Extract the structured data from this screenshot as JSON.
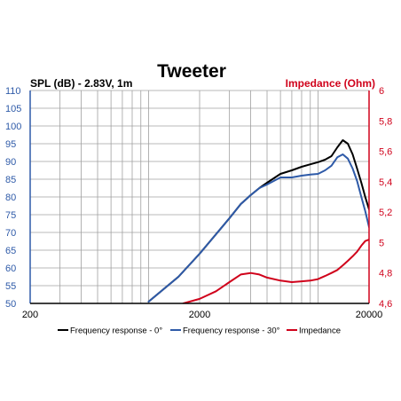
{
  "chart_data": {
    "type": "line",
    "title": "Tweeter",
    "ylabel": "SPL (dB) - 2.83V, 1m",
    "y2label": "Impedance (Ohm)",
    "x_scale": "log",
    "xlim": [
      200,
      20000
    ],
    "ylim": [
      50,
      110
    ],
    "y2lim": [
      4.6,
      6
    ],
    "grid": true,
    "legend_position": "bottom",
    "x_ticks": [
      "200",
      "2000",
      "20000"
    ],
    "y_ticks": [
      "110",
      "105",
      "100",
      "95",
      "90",
      "85",
      "80",
      "75",
      "70",
      "65",
      "60",
      "55",
      "50"
    ],
    "y2_ticks": [
      "6",
      "5,8",
      "5,6",
      "5,4",
      "5,2",
      "5",
      "4,8",
      "4,6"
    ],
    "colors": {
      "freq_0": "#000000",
      "freq_30": "#2e5aa8",
      "impedance": "#d0021b",
      "grid": "#a0a0a0",
      "left_axis": "#2e5aa8",
      "right_axis": "#d0021b"
    },
    "series": [
      {
        "name": "Frequency response - 0°",
        "axis": "left",
        "color": "#000000",
        "x": [
          1000,
          1500,
          2000,
          2500,
          3000,
          3500,
          4000,
          4500,
          5000,
          6000,
          7000,
          8000,
          9000,
          10000,
          11000,
          12000,
          13000,
          14000,
          15000,
          16000,
          17000,
          18000,
          19000,
          20000
        ],
        "y": [
          50.5,
          57.5,
          64,
          69.5,
          74,
          78,
          80.5,
          82.5,
          84,
          86.5,
          87.5,
          88.5,
          89.2,
          89.8,
          90.5,
          91.5,
          94,
          96,
          95,
          92,
          88,
          84,
          80,
          76.5
        ]
      },
      {
        "name": "Frequency response - 30°",
        "axis": "left",
        "color": "#2e5aa8",
        "x": [
          1000,
          1500,
          2000,
          2500,
          3000,
          3500,
          4000,
          4500,
          5000,
          6000,
          7000,
          8000,
          9000,
          10000,
          11000,
          12000,
          13000,
          14000,
          15000,
          16000,
          17000,
          18000,
          19000,
          20000
        ],
        "y": [
          50.5,
          57.5,
          64,
          69.5,
          74,
          78,
          80.5,
          82.5,
          83.5,
          85.5,
          85.5,
          86,
          86.3,
          86.5,
          87.5,
          88.8,
          91.2,
          92,
          90.8,
          88,
          84.5,
          80,
          76,
          71.5
        ]
      },
      {
        "name": "Impedance",
        "axis": "right",
        "color": "#d0021b",
        "x": [
          1600,
          2000,
          2500,
          3000,
          3500,
          4000,
          4500,
          5000,
          6000,
          7000,
          8000,
          9000,
          10000,
          11000,
          12000,
          13000,
          14000,
          15000,
          16000,
          17000,
          18000,
          19000,
          20000
        ],
        "y": [
          4.6,
          4.63,
          4.68,
          4.74,
          4.79,
          4.8,
          4.79,
          4.77,
          4.75,
          4.74,
          4.745,
          4.75,
          4.76,
          4.78,
          4.8,
          4.82,
          4.85,
          4.88,
          4.91,
          4.94,
          4.98,
          5.01,
          5.02
        ]
      }
    ]
  }
}
